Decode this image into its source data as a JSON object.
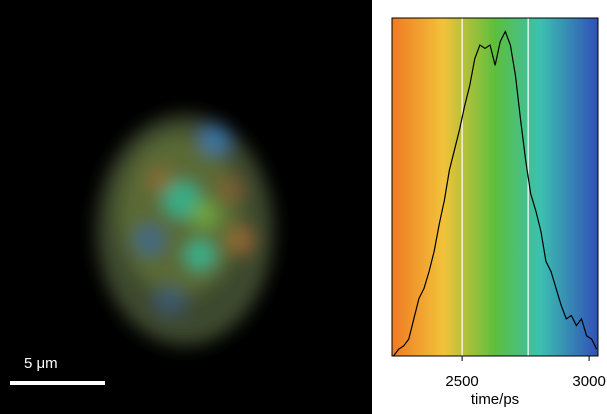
{
  "image": {
    "scale_bar": "5 μm"
  },
  "chart_data": {
    "type": "line",
    "xlabel": "time/ps",
    "x": [
      2230,
      2250,
      2270,
      2290,
      2310,
      2330,
      2350,
      2370,
      2390,
      2410,
      2430,
      2450,
      2470,
      2490,
      2510,
      2530,
      2550,
      2570,
      2590,
      2610,
      2630,
      2650,
      2670,
      2690,
      2710,
      2730,
      2750,
      2770,
      2790,
      2810,
      2830,
      2850,
      2870,
      2890,
      2910,
      2930,
      2950,
      2970,
      2990,
      3010,
      3030
    ],
    "series": [
      {
        "color": "#000000",
        "values": [
          0,
          2,
          3,
          5,
          11,
          17,
          20,
          25,
          31,
          39,
          46,
          55,
          61,
          67,
          74,
          80,
          88,
          92,
          91,
          92,
          86,
          93,
          96,
          92,
          83,
          70,
          58,
          48,
          43,
          37,
          28,
          25,
          20,
          15,
          11,
          12,
          9,
          11,
          6,
          5,
          2
        ]
      }
    ],
    "markers": [
      2500,
      2760
    ],
    "xlim": [
      2224,
      3035
    ],
    "ylim": [
      0,
      100
    ],
    "xticks": [
      2500,
      3000
    ]
  }
}
